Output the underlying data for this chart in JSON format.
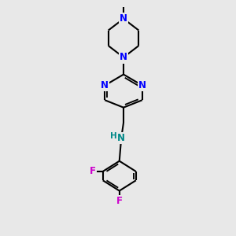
{
  "bg_color": "#e8e8e8",
  "bond_color": "#000000",
  "N_color": "#0000ff",
  "F_color": "#cc00cc",
  "NH_color": "#008888",
  "line_width": 1.5,
  "font_size_atom": 8.5,
  "fig_size": [
    3.0,
    3.0
  ],
  "dpi": 100,
  "xlim": [
    -2.5,
    2.5
  ],
  "ylim": [
    -4.2,
    4.2
  ]
}
